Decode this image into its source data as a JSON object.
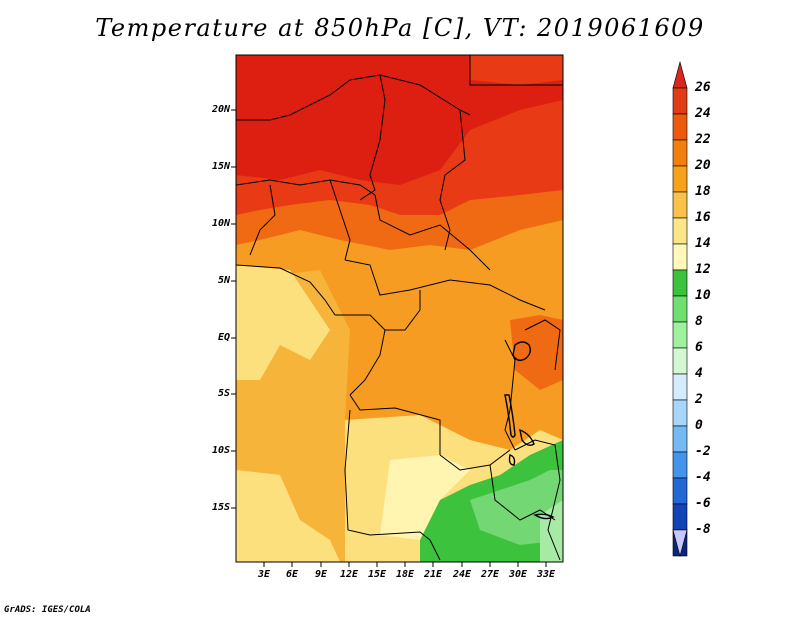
{
  "title": "Temperature at 850hPa [C], VT: 2019061609",
  "credit": "GrADS: IGES/COLA",
  "lat_ticks": [
    "20N",
    "15N",
    "10N",
    "5N",
    "EQ",
    "5S",
    "10S",
    "15S"
  ],
  "lon_ticks": [
    "3E",
    "6E",
    "9E",
    "12E",
    "15E",
    "18E",
    "21E",
    "24E",
    "27E",
    "30E",
    "33E"
  ],
  "colorbar": {
    "labels": [
      "26",
      "24",
      "22",
      "20",
      "18",
      "16",
      "14",
      "12",
      "10",
      "8",
      "6",
      "4",
      "2",
      "0",
      "-2",
      "-4",
      "-6",
      "-8"
    ],
    "colors": {
      "top_arrow": "#d8281a",
      "bands": [
        "#e23c16",
        "#ed5a0e",
        "#f27f0d",
        "#f7a21a",
        "#f9c24a",
        "#fde58a",
        "#fff8b8",
        "#3cc23c",
        "#6fdf6f",
        "#9ff09f",
        "#d3f8d3",
        "#d4ecfc",
        "#a8d6fa",
        "#74b8f4",
        "#4394ea",
        "#2468d8",
        "#1244b8",
        "#0a2580"
      ],
      "bottom_arrow": "#c8c8ff"
    }
  },
  "map_colors": {
    "t26": "#dc1f10",
    "t24": "#e83a14",
    "t22": "#f06a14",
    "t20": "#f69c22",
    "t18": "#f7b43a",
    "t16": "#fde07e",
    "t14": "#fff5b0",
    "t12": "#3cc23c",
    "t10": "#73d873",
    "t8": "#a6eaa6"
  }
}
